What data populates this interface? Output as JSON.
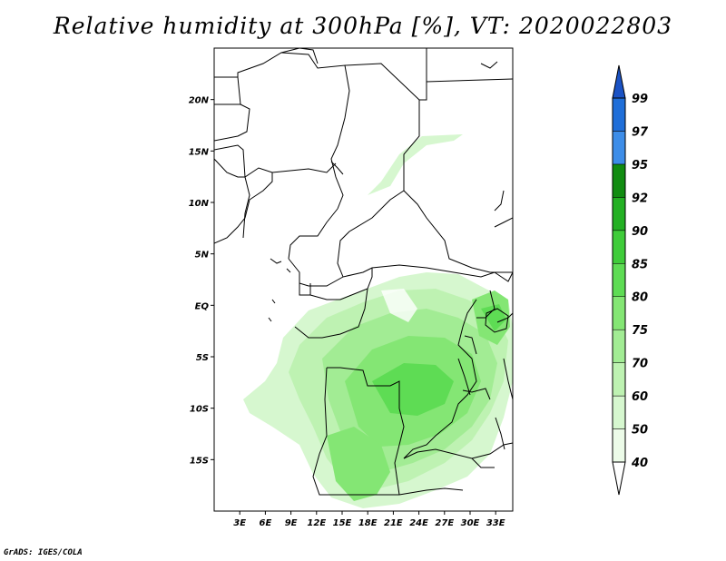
{
  "title": "Relative humidity at 300hPa [%], VT: 2020022803",
  "credit": "GrADS: IGES/COLA",
  "map": {
    "lat_ticks": [
      "20N",
      "15N",
      "10N",
      "5N",
      "EQ",
      "5S",
      "10S",
      "15S"
    ],
    "lat_values": [
      20,
      15,
      10,
      5,
      0,
      -5,
      -10,
      -15
    ],
    "lon_ticks": [
      "3E",
      "6E",
      "9E",
      "12E",
      "15E",
      "18E",
      "21E",
      "24E",
      "27E",
      "30E",
      "33E"
    ],
    "lon_values": [
      3,
      6,
      9,
      12,
      15,
      18,
      21,
      24,
      27,
      30,
      33
    ],
    "lon_range": [
      0,
      35
    ],
    "lat_range": [
      -20,
      25
    ]
  },
  "colorbar": {
    "levels": [
      "40",
      "50",
      "60",
      "70",
      "75",
      "80",
      "85",
      "90",
      "92",
      "95",
      "97",
      "99"
    ],
    "colors": [
      "#ecfbe8",
      "#d6f7cf",
      "#bef2b2",
      "#a2ec94",
      "#84e674",
      "#5edc54",
      "#3fcc3a",
      "#23b023",
      "#118c11",
      "#3d8de8",
      "#1f6ed8",
      "#1a52c4"
    ]
  }
}
